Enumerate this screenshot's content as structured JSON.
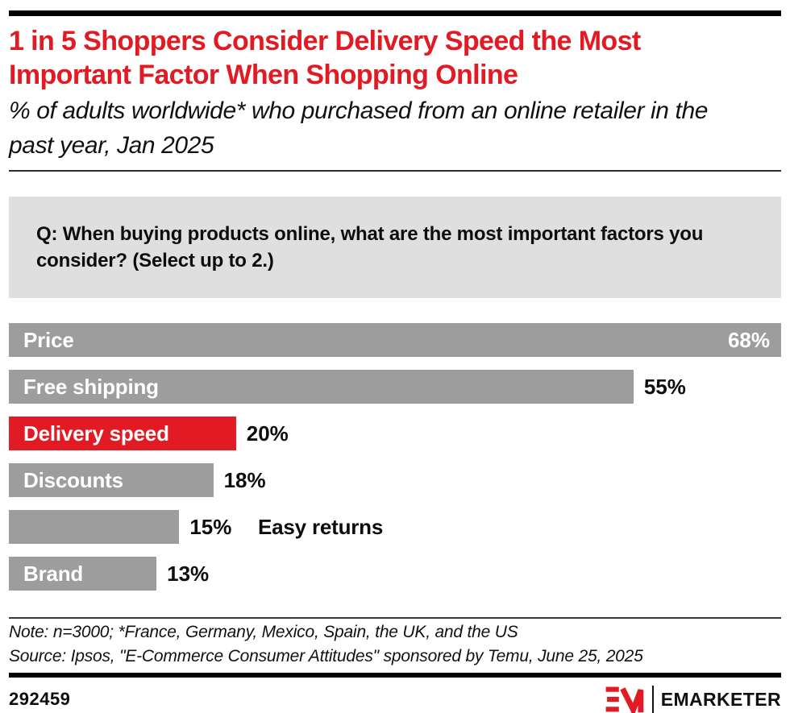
{
  "colors": {
    "accent_red": "#e21a23",
    "bar_gray": "#9d9d9d",
    "question_box_bg": "#dfdfdf",
    "rule_black": "#000000"
  },
  "header": {
    "title": "1 in 5 Shoppers Consider Delivery Speed the Most Important Factor When Shopping Online",
    "subtitle": "% of adults worldwide* who purchased from an online retailer in the past year, Jan 2025"
  },
  "question": "Q: When buying products online, what are the most important factors you consider? (Select up to 2.)",
  "chart_data": {
    "type": "bar",
    "orientation": "horizontal",
    "title": "1 in 5 Shoppers Consider Delivery Speed the Most Important Factor When Shopping Online",
    "subtitle": "% of adults worldwide* who purchased from an online retailer in the past year, Jan 2025",
    "categories": [
      "Price",
      "Free shipping",
      "Delivery speed",
      "Discounts",
      "Easy returns",
      "Brand"
    ],
    "values": [
      68,
      55,
      20,
      18,
      15,
      13
    ],
    "value_suffix": "%",
    "xlim": [
      0,
      68
    ],
    "grid": false,
    "legend": false,
    "highlight_category": "Delivery speed",
    "bars": [
      {
        "label": "Price",
        "value": 68,
        "display": "68%",
        "color": "#9d9d9d",
        "label_position": "inside",
        "value_position": "inside"
      },
      {
        "label": "Free shipping",
        "value": 55,
        "display": "55%",
        "color": "#9d9d9d",
        "label_position": "inside",
        "value_position": "outside"
      },
      {
        "label": "Delivery speed",
        "value": 20,
        "display": "20%",
        "color": "#e21a23",
        "label_position": "inside",
        "value_position": "outside"
      },
      {
        "label": "Discounts",
        "value": 18,
        "display": "18%",
        "color": "#9d9d9d",
        "label_position": "inside",
        "value_position": "outside"
      },
      {
        "label": "Easy returns",
        "value": 15,
        "display": "15%",
        "color": "#9d9d9d",
        "label_position": "outside",
        "value_position": "outside"
      },
      {
        "label": "Brand",
        "value": 13,
        "display": "13%",
        "color": "#9d9d9d",
        "label_position": "inside",
        "value_position": "outside"
      }
    ]
  },
  "footnote": {
    "note": "Note: n=3000; *France, Germany, Mexico, Spain, the UK, and the US",
    "source": "Source: Ipsos, \"E-Commerce Consumer Attitudes\" sponsored by Temu, June 25, 2025"
  },
  "footer": {
    "chart_id": "292459",
    "brand": "EMARKETER"
  }
}
